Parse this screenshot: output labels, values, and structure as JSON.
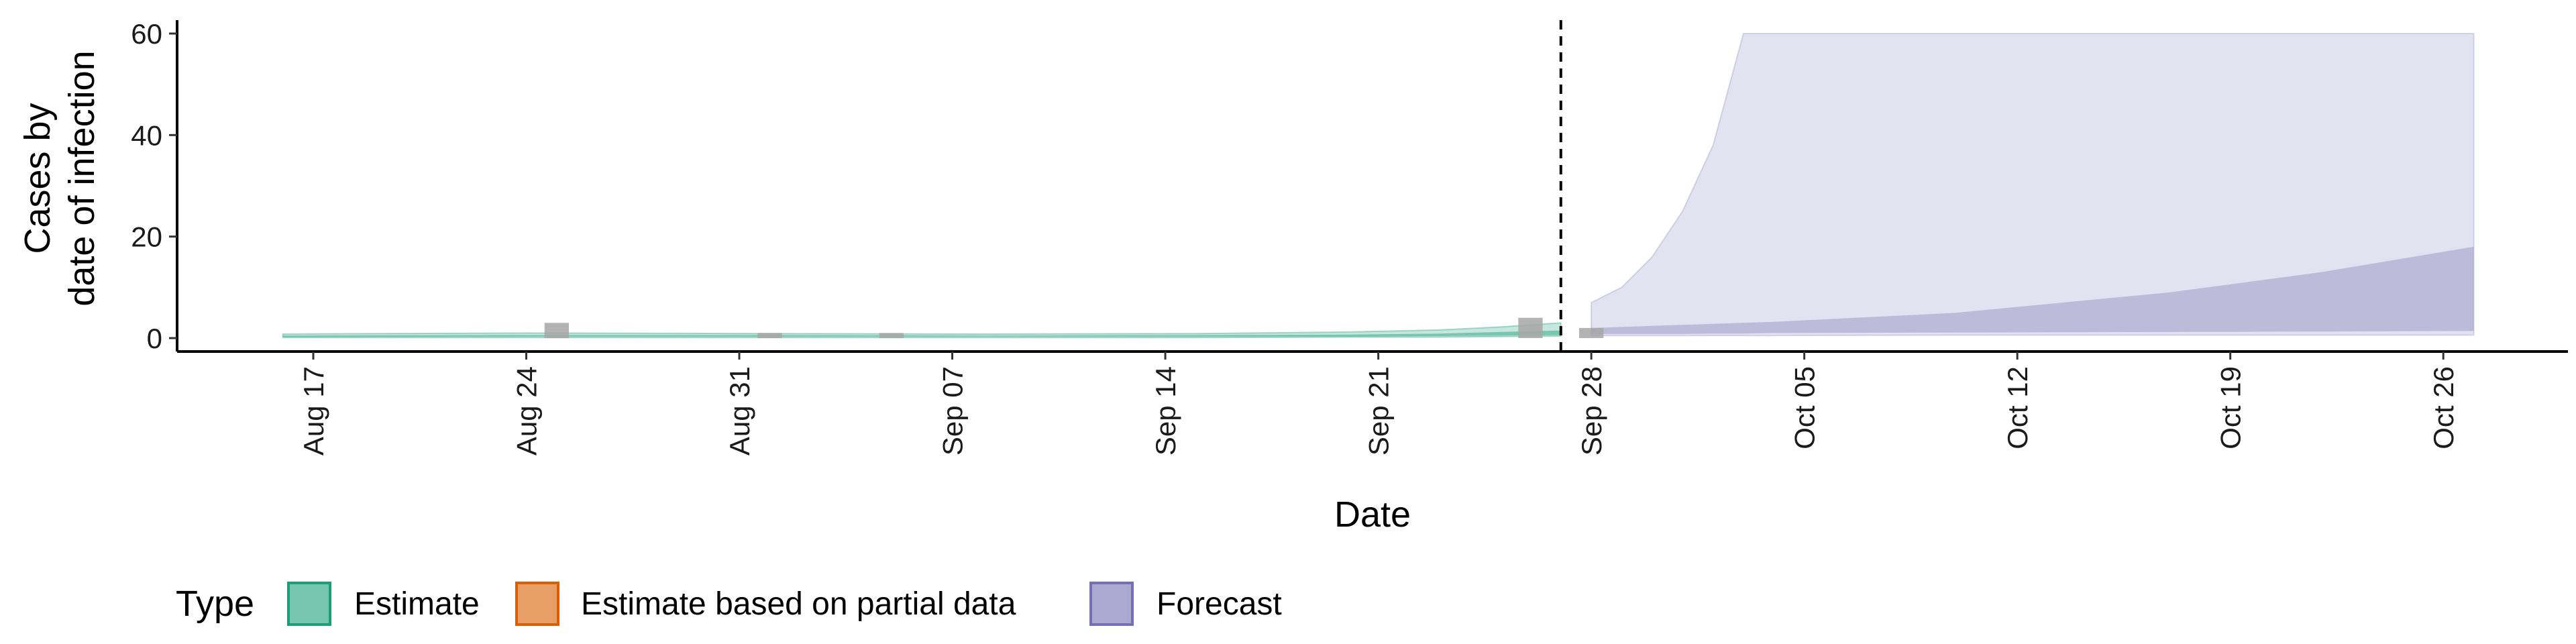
{
  "chart_data": {
    "type": "area",
    "title": "",
    "xlabel": "Date",
    "ylabel_lines": [
      "Cases by",
      "date of infection"
    ],
    "ylim": [
      0,
      60
    ],
    "yticks": [
      0,
      20,
      40,
      60
    ],
    "xlim": [
      "2020-08-12",
      "2020-10-30"
    ],
    "xticks": [
      {
        "date": "2020-08-17",
        "label": "Aug 17"
      },
      {
        "date": "2020-08-24",
        "label": "Aug 24"
      },
      {
        "date": "2020-08-31",
        "label": "Aug 31"
      },
      {
        "date": "2020-09-07",
        "label": "Sep 07"
      },
      {
        "date": "2020-09-14",
        "label": "Sep 14"
      },
      {
        "date": "2020-09-21",
        "label": "Sep 21"
      },
      {
        "date": "2020-09-28",
        "label": "Sep 28"
      },
      {
        "date": "2020-10-05",
        "label": "Oct 05"
      },
      {
        "date": "2020-10-12",
        "label": "Oct 12"
      },
      {
        "date": "2020-10-19",
        "label": "Oct 19"
      },
      {
        "date": "2020-10-26",
        "label": "Oct 26"
      }
    ],
    "reference_line_date": "2020-09-27",
    "colors": {
      "estimate": "#1b9e77",
      "partial": "#d95f02",
      "forecast": "#7570b3",
      "observed": "#a6a6a6"
    },
    "legend": {
      "title": "Type",
      "position": "bottom-left",
      "items": [
        {
          "key": "estimate",
          "label": "Estimate"
        },
        {
          "key": "partial",
          "label": "Estimate based on partial data"
        },
        {
          "key": "forecast",
          "label": "Forecast"
        }
      ]
    },
    "observed_cases": [
      {
        "date": "2020-08-25",
        "value": 3
      },
      {
        "date": "2020-09-01",
        "value": 1
      },
      {
        "date": "2020-09-05",
        "value": 1
      },
      {
        "date": "2020-09-26",
        "value": 4
      },
      {
        "date": "2020-09-28",
        "value": 2
      }
    ],
    "estimate": {
      "dates": [
        "2020-08-16",
        "2020-08-24",
        "2020-09-01",
        "2020-09-08",
        "2020-09-15",
        "2020-09-20",
        "2020-09-23",
        "2020-09-25",
        "2020-09-27"
      ],
      "upper90": [
        0.8,
        1.0,
        0.9,
        0.8,
        0.9,
        1.2,
        1.6,
        2.2,
        3.0
      ],
      "lower90": [
        0.1,
        0.1,
        0.1,
        0.1,
        0.1,
        0.2,
        0.2,
        0.3,
        0.4
      ],
      "upper50": [
        0.5,
        0.6,
        0.6,
        0.5,
        0.6,
        0.7,
        0.9,
        1.2,
        1.5
      ],
      "lower50": [
        0.2,
        0.3,
        0.3,
        0.3,
        0.3,
        0.3,
        0.4,
        0.5,
        0.6
      ]
    },
    "forecast": {
      "dates": [
        "2020-09-28",
        "2020-09-29",
        "2020-09-30",
        "2020-10-01",
        "2020-10-02",
        "2020-10-03",
        "2020-10-04",
        "2020-10-10",
        "2020-10-17",
        "2020-10-22",
        "2020-10-27"
      ],
      "upper90": [
        7,
        10,
        16,
        25,
        38,
        60,
        60,
        60,
        60,
        60,
        60
      ],
      "lower90": [
        0.5,
        0.5,
        0.5,
        0.5,
        0.5,
        0.5,
        0.5,
        0.6,
        0.6,
        0.6,
        0.6
      ],
      "upper50": [
        2,
        2.2,
        2.4,
        2.6,
        2.8,
        3.0,
        3.2,
        5,
        9,
        13,
        18
      ],
      "lower50": [
        0.8,
        0.8,
        0.8,
        0.8,
        0.9,
        0.9,
        1.0,
        1.1,
        1.2,
        1.3,
        1.4
      ]
    }
  }
}
